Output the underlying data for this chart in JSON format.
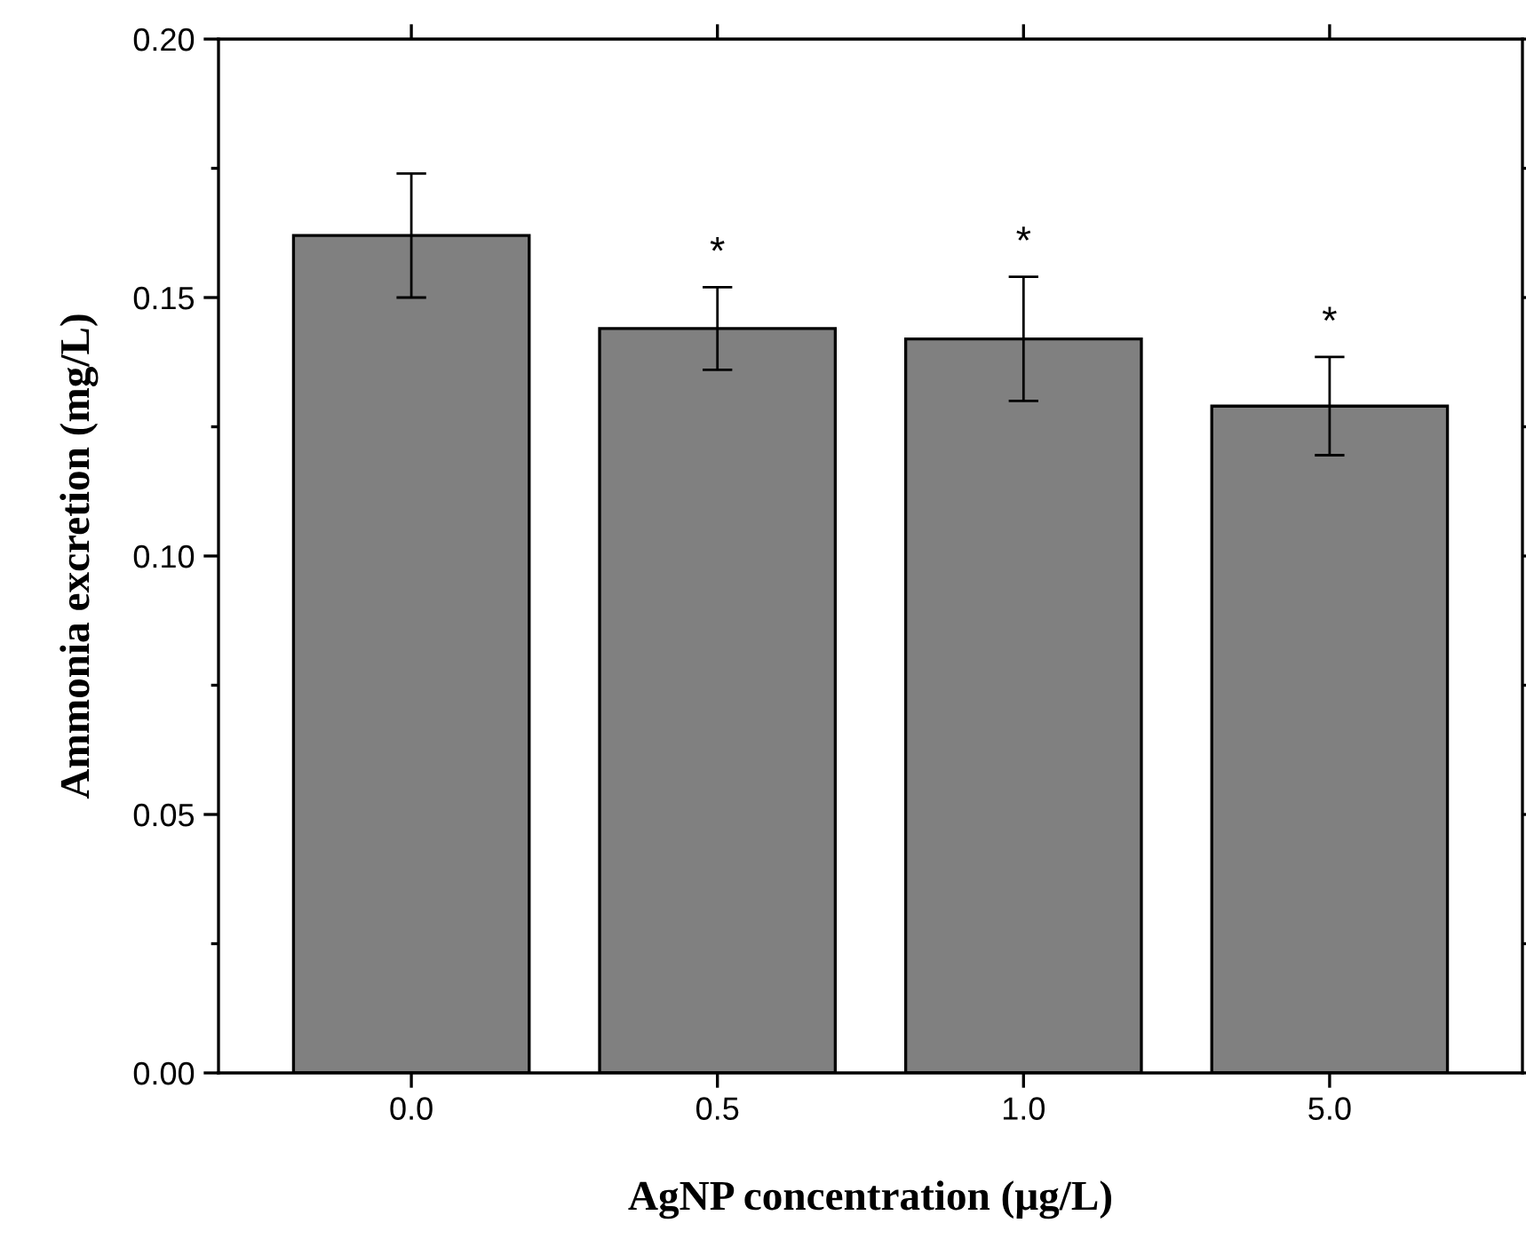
{
  "chart_data": {
    "type": "bar",
    "xlabel": "AgNP concentration (μg/L)",
    "ylabel": "Ammonia excretion (mg/L)",
    "categories": [
      "0.0",
      "0.5",
      "1.0",
      "5.0"
    ],
    "values": [
      0.162,
      0.144,
      0.142,
      0.129
    ],
    "errors": [
      0.012,
      0.008,
      0.012,
      0.0095
    ],
    "color": "#808080",
    "ylim": [
      0,
      0.2
    ],
    "yticks": [
      {
        "value": 0,
        "label": "0.00"
      },
      {
        "value": 0.05,
        "label": "0.05"
      },
      {
        "value": 0.1,
        "label": "0.10"
      },
      {
        "value": 0.15,
        "label": "0.15"
      },
      {
        "value": 0.2,
        "label": "0.20"
      }
    ],
    "annotations": [
      "*",
      "*",
      "*"
    ],
    "grid": false,
    "legend": false
  }
}
